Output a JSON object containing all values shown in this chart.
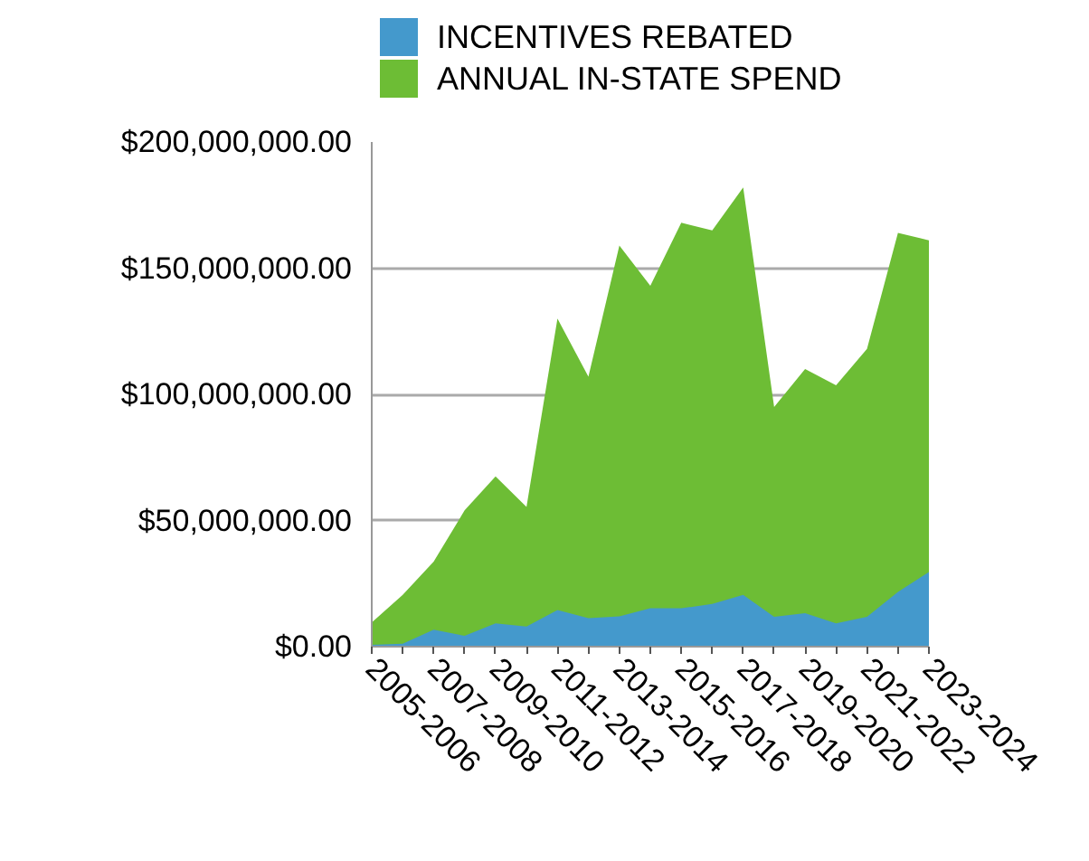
{
  "chart_data": {
    "type": "area",
    "categories": [
      "2005-2006",
      null,
      "2007-2008",
      null,
      "2009-2010",
      null,
      "2011-2012",
      null,
      "2013-2014",
      null,
      "2015-2016",
      null,
      "2017-2018",
      null,
      "2019-2020",
      null,
      "2021-2022",
      null,
      "2023-2024"
    ],
    "series": [
      {
        "name": "INCENTIVES REBATED",
        "color": "#4499cc",
        "values": [
          700000,
          1200000,
          6700000,
          4300000,
          9200000,
          8000000,
          14500000,
          11300000,
          12000000,
          15200000,
          15200000,
          16900000,
          20500000,
          11800000,
          13300000,
          9200000,
          11800000,
          21700000,
          29600000
        ]
      },
      {
        "name": "ANNUAL IN-STATE SPEND",
        "color": "#6dbd35",
        "values": [
          9600000,
          20500000,
          33700000,
          54000000,
          67500000,
          55400000,
          130000000,
          107000000,
          159000000,
          143000000,
          168000000,
          165000000,
          182000000,
          95000000,
          110000000,
          103600000,
          118000000,
          164000000,
          161000000
        ]
      }
    ],
    "ylim": [
      0,
      200000000
    ],
    "yticks": [
      {
        "value": 0,
        "label": "$0.00"
      },
      {
        "value": 50000000,
        "label": "$50,000,000.00"
      },
      {
        "value": 100000000,
        "label": "$100,000,000.00"
      },
      {
        "value": 150000000,
        "label": "$150,000,000.00"
      },
      {
        "value": 200000000,
        "label": "$200,000,000.00"
      }
    ],
    "grid": "y",
    "legend": "top"
  }
}
